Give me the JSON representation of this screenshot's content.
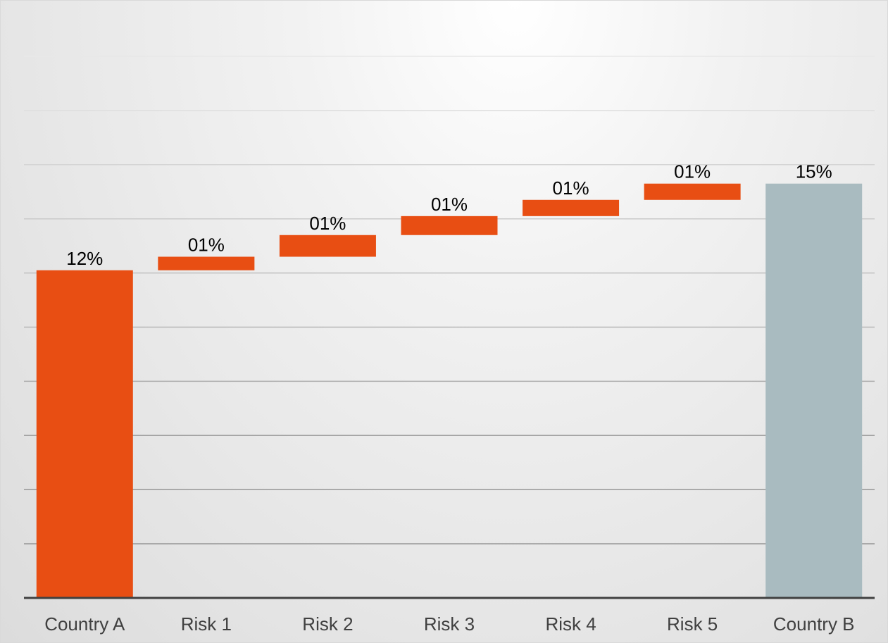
{
  "chart_data": {
    "type": "bar",
    "subtype": "waterfall",
    "title": "",
    "xlabel": "",
    "ylabel": "",
    "categories": [
      "Country A",
      "Risk 1",
      "Risk 2",
      "Risk 3",
      "Risk 4",
      "Risk 5",
      "Country B"
    ],
    "bars": [
      {
        "category": "Country A",
        "kind": "total",
        "start": 0,
        "end": 12.1,
        "label": "12%",
        "color": "#e84e13"
      },
      {
        "category": "Risk 1",
        "kind": "increase",
        "start": 12.1,
        "end": 12.6,
        "label": "01%",
        "color": "#e84e13"
      },
      {
        "category": "Risk 2",
        "kind": "increase",
        "start": 12.6,
        "end": 13.4,
        "label": "01%",
        "color": "#e84e13"
      },
      {
        "category": "Risk 3",
        "kind": "increase",
        "start": 13.4,
        "end": 14.1,
        "label": "01%",
        "color": "#e84e13"
      },
      {
        "category": "Risk 4",
        "kind": "increase",
        "start": 14.1,
        "end": 14.7,
        "label": "01%",
        "color": "#e84e13"
      },
      {
        "category": "Risk 5",
        "kind": "increase",
        "start": 14.7,
        "end": 15.3,
        "label": "01%",
        "color": "#e84e13"
      },
      {
        "category": "Country B",
        "kind": "total",
        "start": 0,
        "end": 15.3,
        "label": "15%",
        "color": "#a9bbc0"
      }
    ],
    "ylim": [
      0,
      20
    ],
    "y_gridline_step": 2,
    "y_axis_labels_shown": false,
    "grid": true,
    "legend": "none",
    "colors": {
      "increase": "#e84e13",
      "total_start": "#e84e13",
      "total_end": "#a9bbc0",
      "gridline": "#8c8c8c",
      "axis": "#404040"
    }
  }
}
